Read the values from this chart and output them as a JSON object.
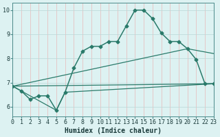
{
  "series": [
    {
      "x": [
        0,
        1,
        2,
        3,
        4,
        5,
        6,
        7,
        8,
        9,
        10,
        11,
        12,
        13,
        14,
        15,
        16,
        17,
        18,
        19,
        20,
        21,
        22,
        23
      ],
      "y": [
        6.85,
        6.65,
        6.3,
        6.45,
        6.45,
        5.85,
        6.6,
        7.6,
        8.3,
        8.5,
        8.5,
        8.7,
        8.7,
        9.35,
        10.0,
        10.0,
        9.65,
        9.05,
        8.7,
        8.7,
        8.4,
        7.95,
        6.95,
        6.95
      ],
      "marker": "D",
      "markersize": 2.5,
      "linewidth": 1.1
    },
    {
      "x": [
        0,
        5,
        6,
        23
      ],
      "y": [
        6.85,
        5.85,
        6.6,
        6.95
      ],
      "marker": null,
      "linewidth": 0.9
    },
    {
      "x": [
        0,
        20,
        23
      ],
      "y": [
        6.85,
        8.4,
        8.2
      ],
      "marker": null,
      "linewidth": 0.9
    },
    {
      "x": [
        0,
        23
      ],
      "y": [
        6.85,
        6.95
      ],
      "marker": null,
      "linewidth": 0.9
    }
  ],
  "color": "#2a7a6a",
  "bg_color": "#ddf2f2",
  "grid_color_h": "#b8d8d8",
  "grid_color_v": "#e8b8b8",
  "xlabel": "Humidex (Indice chaleur)",
  "xlim": [
    0,
    23
  ],
  "ylim": [
    5.6,
    10.3
  ],
  "yticks": [
    6,
    7,
    8,
    9,
    10
  ],
  "xticks": [
    0,
    1,
    2,
    3,
    4,
    5,
    6,
    7,
    8,
    9,
    10,
    11,
    12,
    13,
    14,
    15,
    16,
    17,
    18,
    19,
    20,
    21,
    22,
    23
  ],
  "xlabel_fontsize": 7.0,
  "tick_fontsize": 6.0
}
